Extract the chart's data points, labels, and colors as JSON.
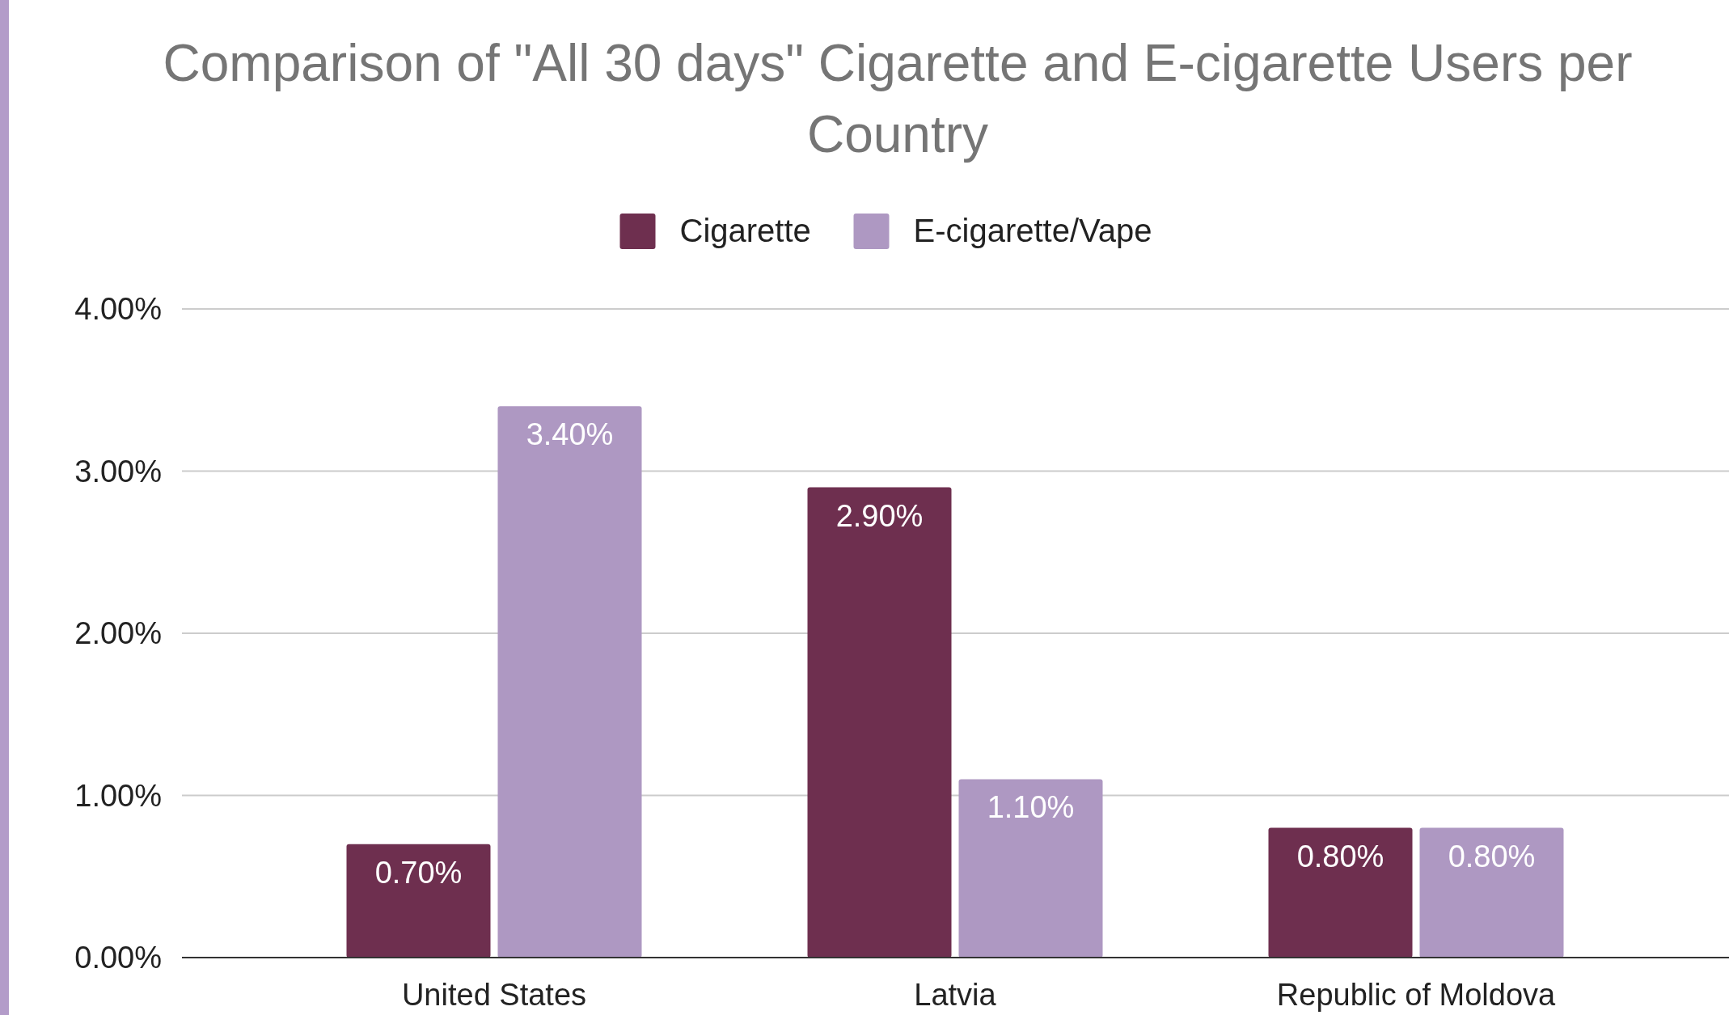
{
  "chart_data": {
    "type": "bar",
    "title": "Comparison of \"All 30 days\" Cigarette and E-cigarette Users per Country",
    "categories": [
      "United States",
      "Latvia",
      "Republic of Moldova"
    ],
    "series": [
      {
        "name": "Cigarette",
        "color": "#6e2f4f",
        "values": [
          0.7,
          2.9,
          0.8
        ]
      },
      {
        "name": "E-cigarette/Vape",
        "color": "#ae98c2",
        "values": [
          3.4,
          1.1,
          0.8
        ]
      }
    ],
    "value_labels": [
      [
        "0.70%",
        "2.90%",
        "0.80%"
      ],
      [
        "3.40%",
        "1.10%",
        "0.80%"
      ]
    ],
    "ylim": [
      0,
      4
    ],
    "yticks": [
      {
        "value": 0,
        "label": "0.00%"
      },
      {
        "value": 1,
        "label": "1.00%"
      },
      {
        "value": 2,
        "label": "2.00%"
      },
      {
        "value": 3,
        "label": "3.00%"
      },
      {
        "value": 4,
        "label": "4.00%"
      }
    ],
    "grid": "y",
    "legend": "top"
  }
}
